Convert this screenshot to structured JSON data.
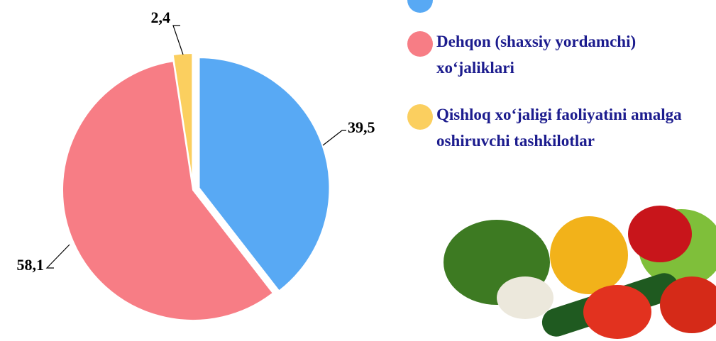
{
  "chart_data": {
    "type": "pie",
    "categories": [
      null,
      "Dehqon (shaxsiy yordamchi) xo‘jaliklari",
      "Qishloq xo‘jaligi faoliyatini amalga oshiruvchi tashkilotlar"
    ],
    "values": [
      39.5,
      58.1,
      2.4
    ],
    "value_labels": [
      "39,5",
      "58,1",
      "2,4"
    ],
    "colors": [
      "#58a9f4",
      "#f77d85",
      "#fbcf5f"
    ]
  }
}
